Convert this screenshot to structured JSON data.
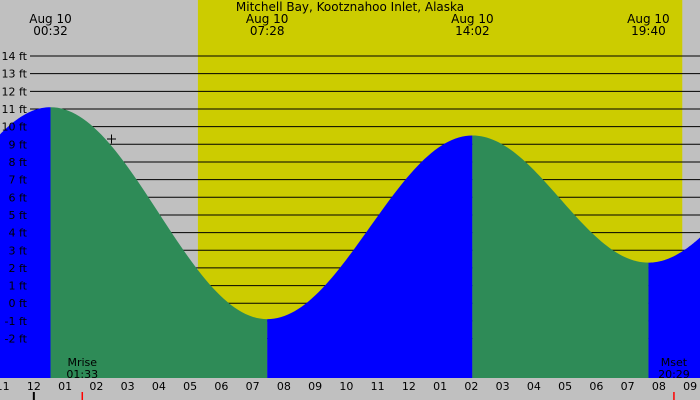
{
  "colors": {
    "background": "#c0c0c0",
    "daylight": "#cccc00",
    "rising": "#0000ff",
    "falling": "#2e8b57",
    "gridline": "#000000",
    "moon_marker": "#ff0000"
  },
  "chart_data": {
    "type": "area",
    "title": "Mitchell Bay, Kootznahoo Inlet, Alaska",
    "x_unit": "hour of day",
    "y_unit": "ft",
    "xlim": [
      -1.083,
      21.317
    ],
    "ylim": [
      -3.5,
      14.4
    ],
    "y_ticks": [
      -2,
      -1,
      0,
      1,
      2,
      3,
      4,
      5,
      6,
      7,
      8,
      9,
      10,
      11,
      12,
      13,
      14
    ],
    "y_tick_labels": [
      "-2 ft",
      "-1 ft",
      "0 ft",
      "1 ft",
      "2 ft",
      "3 ft",
      "4 ft",
      "5 ft",
      "6 ft",
      "7 ft",
      "8 ft",
      "9 ft",
      "10 ft",
      "11 ft",
      "12 ft",
      "13 ft",
      "14 ft"
    ],
    "hour_ticks": [
      -1,
      0,
      1,
      2,
      3,
      4,
      5,
      6,
      7,
      8,
      9,
      10,
      11,
      12,
      13,
      14,
      15,
      16,
      17,
      18,
      19,
      20,
      21
    ],
    "hour_tick_labels": [
      "11",
      "12",
      "01",
      "02",
      "03",
      "04",
      "05",
      "06",
      "07",
      "08",
      "09",
      "10",
      "11",
      "12",
      "01",
      "02",
      "03",
      "04",
      "05",
      "06",
      "07",
      "08",
      "09"
    ],
    "daylight": [
      5.25,
      20.75
    ],
    "tide_extremes": [
      {
        "date": "Aug 10",
        "time": "00:32",
        "hour": 0.533,
        "height": 11.1,
        "kind": "high"
      },
      {
        "date": "Aug 10",
        "time": "07:28",
        "hour": 7.467,
        "height": -0.9,
        "kind": "low"
      },
      {
        "date": "Aug 10",
        "time": "14:02",
        "hour": 14.033,
        "height": 9.5,
        "kind": "high"
      },
      {
        "date": "Aug 10",
        "time": "19:40",
        "hour": 19.667,
        "height": 2.3,
        "kind": "low"
      }
    ],
    "tide_edges": [
      {
        "hour": -1.083,
        "height": 8.9
      },
      {
        "hour": 21.317,
        "height": 4.6
      }
    ],
    "moon_events": [
      {
        "label": "Mrise",
        "time": "01:33",
        "hour": 1.55
      },
      {
        "label": "Mset",
        "time": "20:29",
        "hour": 20.483
      }
    ]
  }
}
